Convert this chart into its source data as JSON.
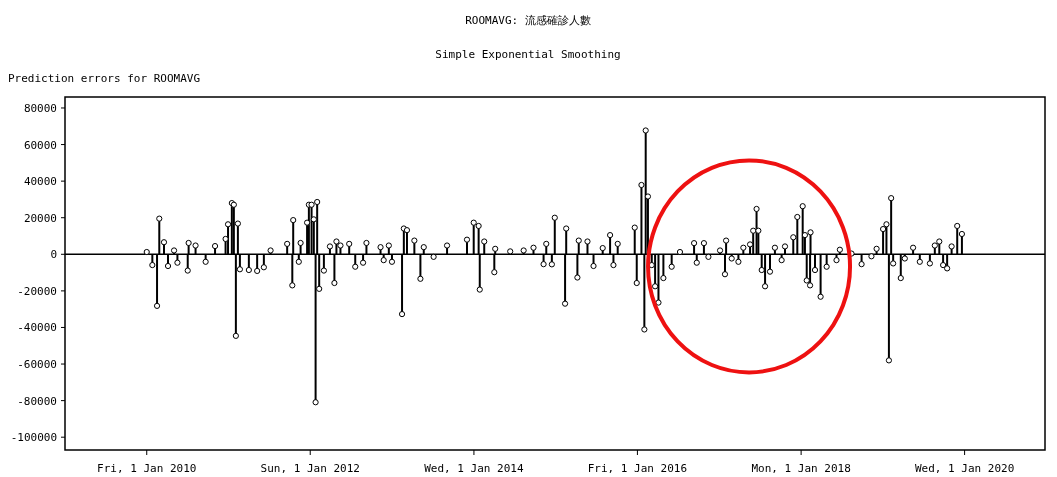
{
  "chart_data": {
    "type": "lollipop",
    "title": "ROOMAVG: 流感確診人數",
    "subtitle": "Simple Exponential Smoothing",
    "ylabel": "Prediction errors for ROOMAVG",
    "x": [
      "2010-01-01",
      "2010-01-26",
      "2010-02-16",
      "2010-02-26",
      "2010-03-19",
      "2010-04-06",
      "2010-05-03",
      "2010-05-18",
      "2010-07-03",
      "2010-07-07",
      "2010-08-07",
      "2010-09-21",
      "2010-11-02",
      "2010-12-19",
      "2010-12-30",
      "2011-01-16",
      "2011-01-25",
      "2011-02-03",
      "2011-02-12",
      "2011-02-21",
      "2011-04-02",
      "2011-05-09",
      "2011-06-08",
      "2011-07-08",
      "2011-09-20",
      "2011-10-13",
      "2011-10-17",
      "2011-11-11",
      "2011-11-19",
      "2011-12-18",
      "2011-12-26",
      "2012-01-07",
      "2012-01-17",
      "2012-01-25",
      "2012-02-01",
      "2012-02-10",
      "2012-03-02",
      "2012-03-29",
      "2012-04-18",
      "2012-04-27",
      "2012-05-15",
      "2012-06-23",
      "2012-07-20",
      "2012-08-24",
      "2012-09-08",
      "2012-11-10",
      "2012-11-24",
      "2012-12-17",
      "2012-12-31",
      "2013-02-14",
      "2013-02-22",
      "2013-03-08",
      "2013-04-10",
      "2013-05-07",
      "2013-05-22",
      "2013-07-05",
      "2013-09-03",
      "2013-12-01",
      "2013-12-31",
      "2014-01-22",
      "2014-01-27",
      "2014-02-16",
      "2014-04-02",
      "2014-04-06",
      "2014-06-12",
      "2014-08-11",
      "2014-09-24",
      "2014-11-08",
      "2014-11-20",
      "2014-12-15",
      "2014-12-28",
      "2015-02-12",
      "2015-02-17",
      "2015-04-08",
      "2015-04-14",
      "2015-05-23",
      "2015-06-19",
      "2015-07-30",
      "2015-09-01",
      "2015-09-16",
      "2015-10-05",
      "2015-12-20",
      "2015-12-29",
      "2016-01-19",
      "2016-02-01",
      "2016-02-07",
      "2016-02-17",
      "2016-03-05",
      "2016-03-20",
      "2016-04-04",
      "2016-04-26",
      "2016-06-02",
      "2016-07-09",
      "2016-09-10",
      "2016-09-22",
      "2016-10-24",
      "2016-11-13",
      "2017-01-04",
      "2017-01-26",
      "2017-01-31",
      "2017-02-25",
      "2017-03-27",
      "2017-04-18",
      "2017-05-18",
      "2017-06-01",
      "2017-06-16",
      "2017-06-24",
      "2017-07-09",
      "2017-07-24",
      "2017-08-15",
      "2017-09-06",
      "2017-10-06",
      "2017-10-21",
      "2017-11-27",
      "2017-12-15",
      "2018-01-08",
      "2018-01-18",
      "2018-01-26",
      "2018-02-10",
      "2018-02-12",
      "2018-03-04",
      "2018-03-29",
      "2018-04-25",
      "2018-06-08",
      "2018-06-23",
      "2018-08-14",
      "2018-09-28",
      "2018-11-11",
      "2018-12-04",
      "2019-01-02",
      "2019-01-17",
      "2019-01-28",
      "2019-02-07",
      "2019-02-16",
      "2019-03-22",
      "2019-04-09",
      "2019-05-16",
      "2019-06-15",
      "2019-07-30",
      "2019-08-21",
      "2019-09-10",
      "2019-09-27",
      "2019-10-15",
      "2019-11-04",
      "2019-11-29",
      "2019-12-20"
    ],
    "series": [
      {
        "color": "#000000",
        "values": [
          1250,
          -5900,
          -28200,
          19500,
          6600,
          -6400,
          2100,
          -4600,
          -8900,
          6200,
          4800,
          -4100,
          4500,
          8400,
          16400,
          28000,
          27100,
          -44600,
          16800,
          -8200,
          -8600,
          -9100,
          -7100,
          2100,
          5700,
          -17000,
          18700,
          -4100,
          6200,
          17300,
          27100,
          27100,
          19100,
          -80900,
          28600,
          -18900,
          -8900,
          4300,
          -15700,
          7000,
          4800,
          5700,
          -6800,
          -4600,
          6200,
          3900,
          -3200,
          4800,
          -4100,
          -32700,
          14100,
          13200,
          7500,
          -13400,
          3900,
          -1400,
          4800,
          8000,
          17300,
          15500,
          -19300,
          7000,
          -9800,
          3000,
          1600,
          2100,
          3600,
          -5400,
          5700,
          -5500,
          20000,
          -27000,
          14100,
          -12700,
          7500,
          7000,
          -6400,
          3400,
          10500,
          -5900,
          5700,
          14600,
          -15700,
          37900,
          -41100,
          67700,
          31600,
          -5900,
          -17500,
          -26400,
          -13000,
          -6800,
          1250,
          6100,
          -4600,
          6100,
          -1400,
          2100,
          -10900,
          7500,
          -2300,
          -4100,
          3600,
          5400,
          12900,
          24800,
          12900,
          -8600,
          -17500,
          -9500,
          3600,
          -3200,
          4300,
          9300,
          20400,
          26300,
          10500,
          -14300,
          -17000,
          12000,
          -8600,
          -23200,
          -6800,
          -3200,
          2500,
          400,
          -5400,
          -1100,
          3000,
          13800,
          16400,
          -58000,
          30700,
          -5000,
          -13000,
          -2300,
          3600,
          -4100,
          -5000,
          4800,
          7000,
          -5900,
          -7700,
          4300,
          15500,
          11100
        ]
      }
    ],
    "xlim": [
      "2009-01-01",
      "2020-12-25"
    ],
    "xticks": [
      {
        "value": "2010-01-01",
        "label": "Fri, 1 Jan 2010"
      },
      {
        "value": "2012-01-01",
        "label": "Sun, 1 Jan 2012"
      },
      {
        "value": "2014-01-01",
        "label": "Wed, 1 Jan 2014"
      },
      {
        "value": "2016-01-01",
        "label": "Fri, 1 Jan 2016"
      },
      {
        "value": "2018-01-01",
        "label": "Mon, 1 Jan 2018"
      },
      {
        "value": "2020-01-01",
        "label": "Wed, 1 Jan 2020"
      }
    ],
    "ylim": [
      -107000,
      86000
    ],
    "yticks": [
      80000,
      60000,
      40000,
      20000,
      0,
      -20000,
      -40000,
      -60000,
      -80000,
      -100000
    ],
    "marker": "circle",
    "ref_lines": [
      {
        "axis": "y",
        "value": 0
      }
    ]
  }
}
